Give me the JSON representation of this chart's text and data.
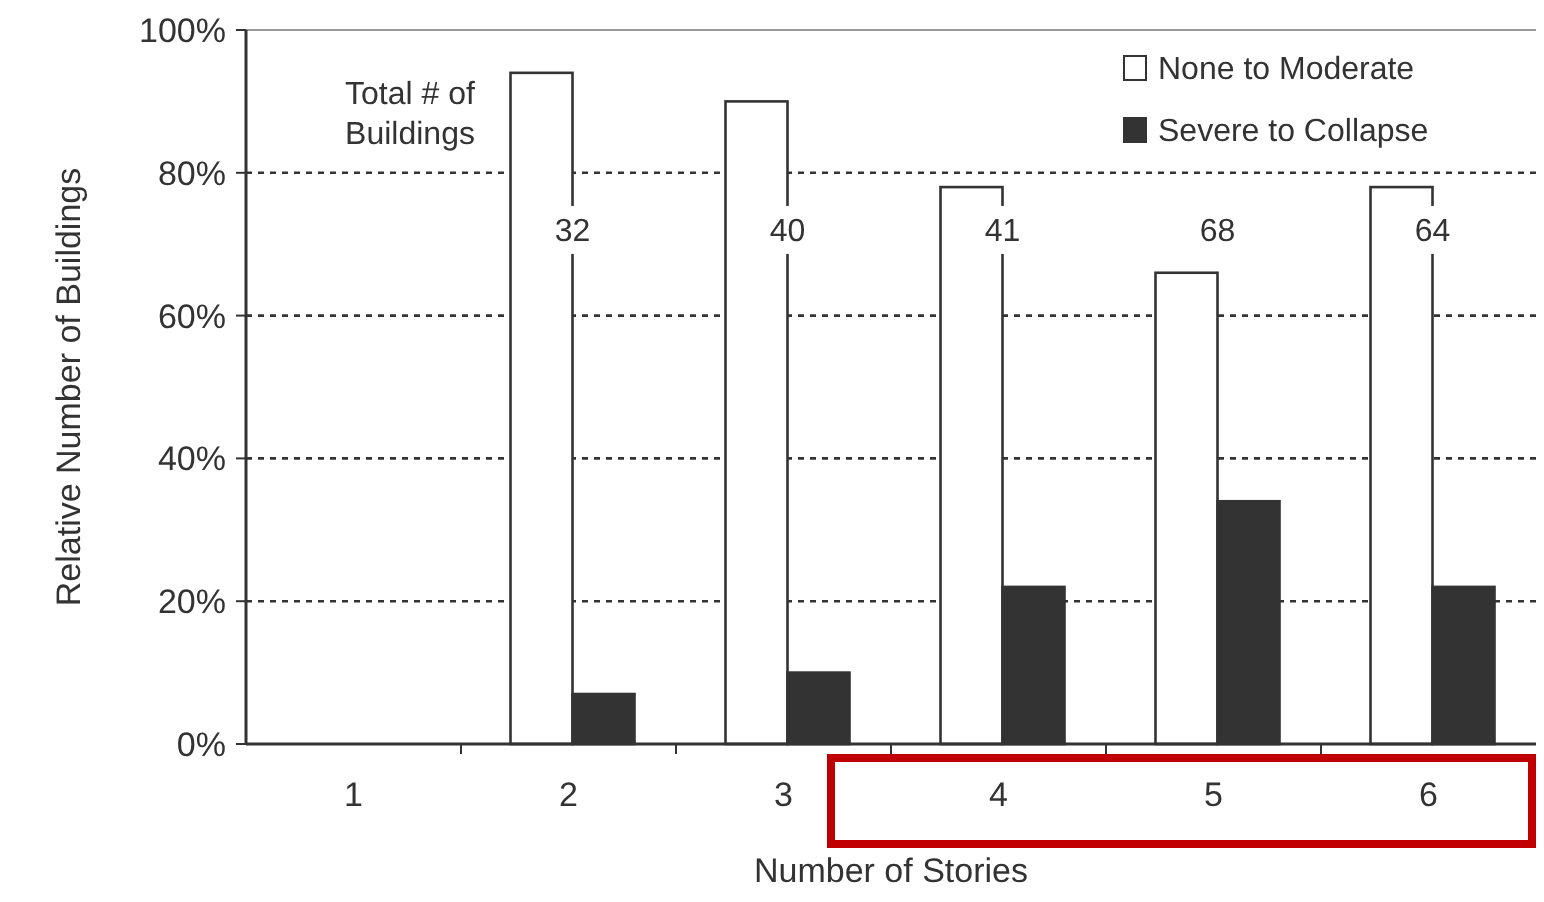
{
  "chart_data": {
    "type": "bar",
    "xlabel": "Number of Stories",
    "ylabel": "Relative Number of Buildings",
    "categories": [
      "1",
      "2",
      "3",
      "4",
      "5",
      "6"
    ],
    "series": [
      {
        "name": "None to Moderate",
        "color": "#ffffff",
        "values": [
          0,
          94,
          90,
          78,
          66,
          78
        ]
      },
      {
        "name": "Severe to Collapse",
        "color": "#333333",
        "values": [
          0,
          7,
          10,
          22,
          34,
          22
        ]
      }
    ],
    "ylim": [
      0,
      100
    ],
    "yticks": [
      {
        "value": 0,
        "label": "0%"
      },
      {
        "value": 20,
        "label": "20%"
      },
      {
        "value": 40,
        "label": "40%"
      },
      {
        "value": 60,
        "label": "60%"
      },
      {
        "value": 80,
        "label": "80%"
      },
      {
        "value": 100,
        "label": "100%"
      }
    ],
    "grid": "y",
    "legend": "top right",
    "annotations": [
      "Total # of Buildings",
      {
        "text": "32",
        "x": "2",
        "y": 72
      },
      {
        "text": "40",
        "x": "3",
        "y": 72
      },
      {
        "text": "41",
        "x": "4",
        "y": 72
      },
      {
        "text": "68",
        "x": "5",
        "y": 72
      },
      {
        "text": "64",
        "x": "6",
        "y": 72
      }
    ]
  }
}
